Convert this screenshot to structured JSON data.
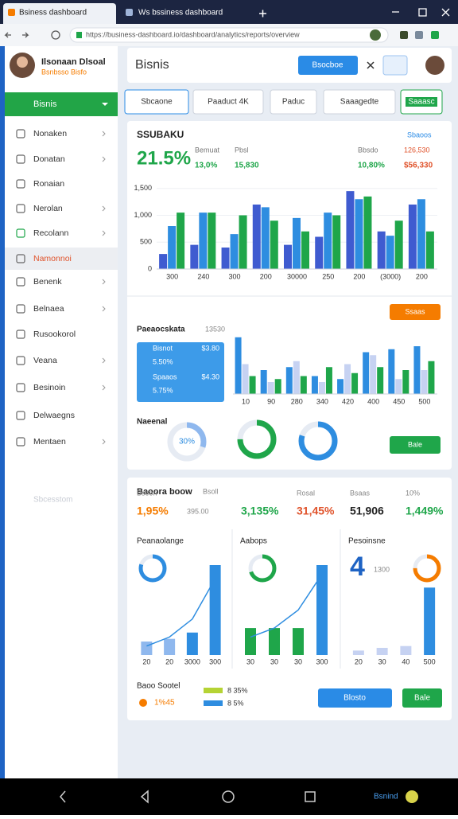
{
  "browser": {
    "tabs": [
      "Bsiness dashboard",
      "Ws bssiness dashboard"
    ],
    "url": "https://business-dashboard.io/dashboard/analytics/reports/overview"
  },
  "sidebar": {
    "user_name": "Ilsonaan Dlsoal",
    "user_role": "Bsnbsso Bisfo",
    "active": "Bisnis",
    "menu": [
      "Nonaken",
      "Donatan",
      "Ronaian",
      "Nerolan",
      "Recolann",
      "Namonnoi",
      "Benenk",
      "Belnaea",
      "Rusookorol",
      "Veana",
      "Besinoin",
      "Delwaegns",
      "Mentaen"
    ],
    "footer": "Sbcesstom"
  },
  "header": {
    "title": "Bisnis",
    "button": "Bsocboe"
  },
  "filters": [
    "Sbcaone",
    "Paaduct 4K",
    "Paduc",
    "Saaagedte",
    "Saaasc"
  ],
  "card1": {
    "title": "SSUBAKU",
    "link": "Sbaoos",
    "headline": "21.5%",
    "stats": [
      {
        "label": "Bemuat",
        "value": "13,0%"
      },
      {
        "label": "Pbsl",
        "value": "15,830"
      },
      {
        "label": "Bbsdo",
        "value": "10,80%"
      },
      {
        "label": "126,530",
        "value": "$56,330"
      }
    ],
    "chart": {
      "type": "bar",
      "categories": [
        "300",
        "240",
        "300",
        "200",
        "30000",
        "250",
        "200",
        "(3000)",
        "200"
      ],
      "series": [
        {
          "color": "#3f5bd0",
          "values": [
            280,
            450,
            400,
            1200,
            450,
            600,
            1450,
            700,
            1200
          ]
        },
        {
          "color": "#2e8de0",
          "values": [
            800,
            1050,
            650,
            1150,
            950,
            1050,
            1300,
            620,
            1300
          ]
        },
        {
          "color": "#1fa64a",
          "values": [
            1050,
            1050,
            1000,
            900,
            700,
            1000,
            1350,
            900,
            700
          ]
        }
      ],
      "ylim": [
        0,
        1600
      ],
      "yticks": [
        0,
        500,
        {
          "value": 1000,
          "label": "1,000"
        },
        {
          "value": 1500,
          "label": "1,500"
        }
      ],
      "grid": true
    },
    "section_title": "Paeaocskata",
    "section_note": "13530",
    "button": "Ssaas",
    "list": [
      [
        "Bisnot",
        "$3.80"
      ],
      [
        "5.50%"
      ],
      [
        "Spaaos",
        "$4.30"
      ],
      [
        "5.75%"
      ]
    ],
    "chart2": {
      "type": "bar",
      "categories": [
        "10",
        "90",
        "280",
        "340",
        "420",
        "400",
        "450",
        "500"
      ],
      "series": [
        {
          "color": "#2e8de0",
          "values": [
            95,
            40,
            45,
            30,
            25,
            70,
            75,
            80
          ]
        },
        {
          "color": "#c6d2f2",
          "values": [
            50,
            20,
            55,
            20,
            50,
            65,
            25,
            40
          ]
        },
        {
          "color": "#1fa64a",
          "values": [
            30,
            25,
            30,
            45,
            35,
            45,
            40,
            55
          ]
        }
      ],
      "ylim": [
        0,
        100
      ]
    },
    "donut_label": "Naeenal",
    "donuts": [
      {
        "value": 30,
        "label": "30%",
        "color": "#8fb8ee"
      },
      {
        "value": 75,
        "color": "#1fa64a"
      },
      {
        "value": 80,
        "color": "#2e8de0"
      }
    ],
    "button2": "Bale"
  },
  "card2": {
    "title": "Baoora boow",
    "note": "Bsoll",
    "stats": [
      {
        "label": "Bseon",
        "value": "1,95%"
      },
      {
        "label": "395.00",
        "value": "3,135%"
      },
      {
        "label": "Rosal",
        "value": "31,45%"
      },
      {
        "label": "Bsaas",
        "value": "51,906"
      },
      {
        "label": "10%",
        "value": "1,449%"
      }
    ],
    "panels": [
      {
        "title": "Peanaolange",
        "donut": 80,
        "categories": [
          "20",
          "20",
          "3000",
          "300"
        ],
        "values": [
          15,
          18,
          25,
          100
        ],
        "colors": [
          "#8fb8ee",
          "#8fb8ee",
          "#2e8de0",
          "#2e8de0"
        ],
        "line": [
          10,
          20,
          40,
          85
        ]
      },
      {
        "title": "Aabops",
        "donut": 70,
        "categories": [
          "30",
          "30",
          "30",
          "300"
        ],
        "values": [
          30,
          30,
          30,
          100
        ],
        "colors": [
          "#1fa64a",
          "#1fa64a",
          "#1fa64a",
          "#2e8de0"
        ],
        "line": [
          20,
          30,
          50,
          90
        ]
      },
      {
        "title": "Pesoinsne",
        "headline": "4",
        "note": "1300",
        "donut": 75,
        "categories": [
          "20",
          "30",
          "40",
          "500"
        ],
        "values": [
          5,
          8,
          10,
          75
        ],
        "colors": [
          "#c6d2f2",
          "#c6d2f2",
          "#c6d2f2",
          "#2e8de0"
        ]
      }
    ],
    "footer_title": "Baoo Sootel",
    "footer_note": "1%45",
    "legend": [
      {
        "label": "8 35%",
        "color": "#b5d334"
      },
      {
        "label": "8 5%",
        "color": "#2e8de0"
      }
    ],
    "button": "Blosto",
    "button2": "Bale"
  },
  "nav": {
    "label": "Bsnind"
  }
}
